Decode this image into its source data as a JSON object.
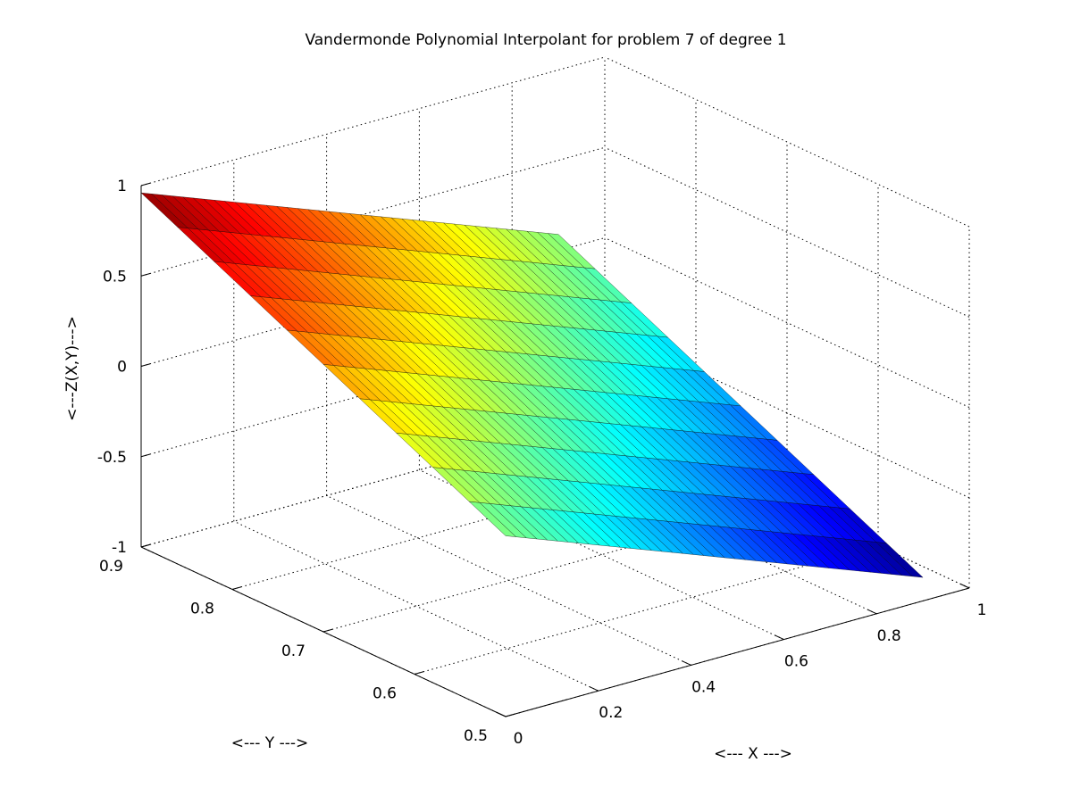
{
  "chart_data": {
    "type": "surface",
    "title": "Vandermonde Polynomial Interpolant for problem 7 of degree 1",
    "xlabel": "<--- X --->",
    "ylabel": "<--- Y --->",
    "zlabel": "<---Z(X,Y)--->",
    "xlim": [
      0,
      1
    ],
    "ylim": [
      0.5,
      0.9
    ],
    "zlim": [
      -1,
      1
    ],
    "x_ticks": [
      "0",
      "0.2",
      "0.4",
      "0.6",
      "0.8",
      "1"
    ],
    "y_ticks": [
      "0.5",
      "0.6",
      "0.7",
      "0.8",
      "0.9"
    ],
    "z_ticks": [
      "-1",
      "-0.5",
      "0",
      "0.5",
      "1"
    ],
    "surface": {
      "x_range": [
        0,
        0.9
      ],
      "y_range": [
        0.5,
        0.9
      ],
      "corners": [
        {
          "x": 0,
          "y": 0.9,
          "z": 0.96
        },
        {
          "x": 0.9,
          "y": 0.9,
          "z": 0.09
        },
        {
          "x": 0,
          "y": 0.5,
          "z": 0.0
        },
        {
          "x": 0.9,
          "y": 0.5,
          "z": -0.87
        }
      ],
      "colormap": "jet",
      "edge_color": "#000000"
    },
    "grid": true,
    "colors": {
      "background": "#ffffff",
      "grid": "#000000"
    }
  }
}
